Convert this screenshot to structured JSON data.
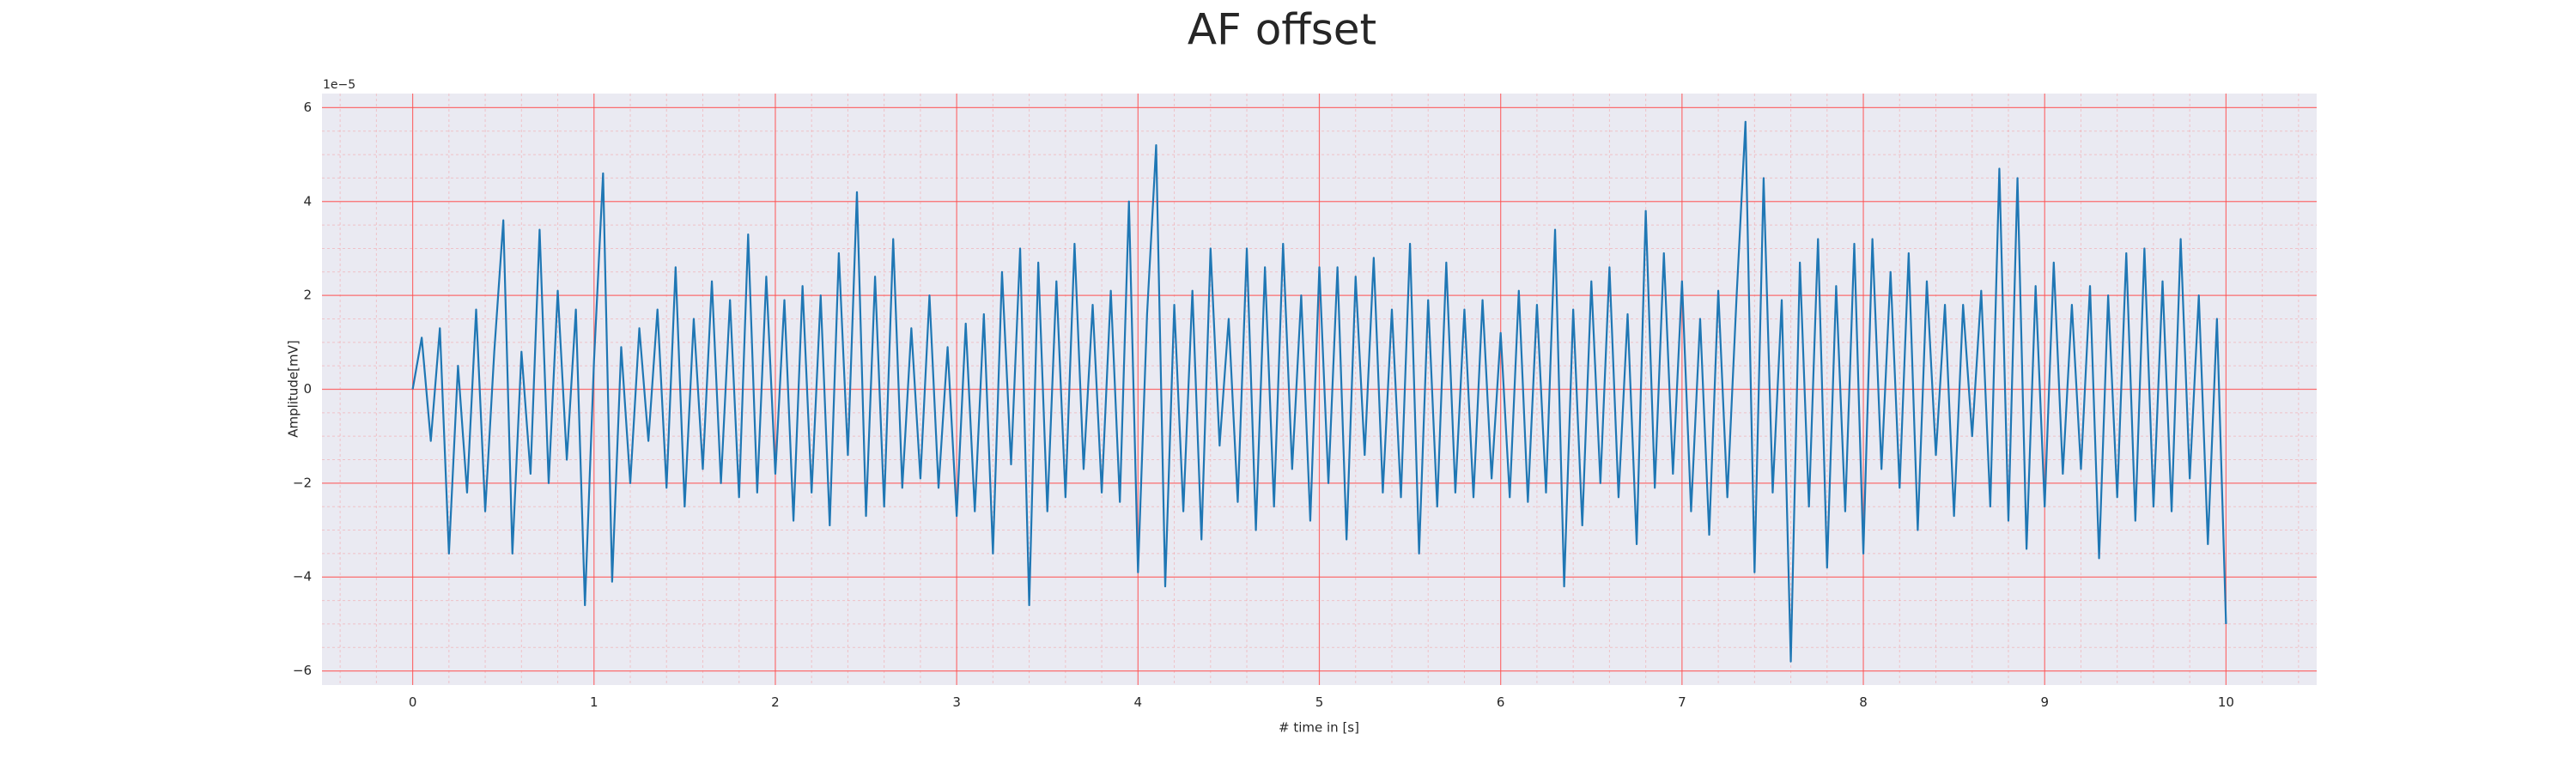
{
  "chart_data": {
    "type": "line",
    "title": "AF offset",
    "x_label": "# time in [s]",
    "y_label": "Amplitude[mV]",
    "y_offset_label": "1e−5",
    "xlim": [
      -0.5,
      10.5
    ],
    "ylim": [
      -6.3,
      6.3
    ],
    "xticks": [
      0,
      1,
      2,
      3,
      4,
      5,
      6,
      7,
      8,
      9,
      10
    ],
    "yticks": [
      {
        "value": -6,
        "label": "−6"
      },
      {
        "value": -4,
        "label": "−4"
      },
      {
        "value": -2,
        "label": "−2"
      },
      0,
      2,
      4,
      6
    ],
    "grid": true,
    "minor_grid": true,
    "background": "#eaeaf2",
    "grid_color": "#ff4d4d",
    "x": [
      0,
      0.05,
      0.1,
      0.15,
      0.2,
      0.25,
      0.3,
      0.35,
      0.4,
      0.45,
      0.5,
      0.55,
      0.6,
      0.65,
      0.7,
      0.75,
      0.8,
      0.85,
      0.9,
      0.95,
      1,
      1.05,
      1.1,
      1.15,
      1.2,
      1.25,
      1.3,
      1.35,
      1.4,
      1.45,
      1.5,
      1.55,
      1.6,
      1.65,
      1.7,
      1.75,
      1.8,
      1.85,
      1.9,
      1.95,
      2,
      2.05,
      2.1,
      2.15,
      2.2,
      2.25,
      2.3,
      2.35,
      2.4,
      2.45,
      2.5,
      2.55,
      2.6,
      2.65,
      2.7,
      2.75,
      2.8,
      2.85,
      2.9,
      2.95,
      3,
      3.05,
      3.1,
      3.15,
      3.2,
      3.25,
      3.3,
      3.35,
      3.4,
      3.45,
      3.5,
      3.55,
      3.6,
      3.65,
      3.7,
      3.75,
      3.8,
      3.85,
      3.9,
      3.95,
      4,
      4.05,
      4.1,
      4.15,
      4.2,
      4.25,
      4.3,
      4.35,
      4.4,
      4.45,
      4.5,
      4.55,
      4.6,
      4.65,
      4.7,
      4.75,
      4.8,
      4.85,
      4.9,
      4.95,
      5,
      5.05,
      5.1,
      5.15,
      5.2,
      5.25,
      5.3,
      5.35,
      5.4,
      5.45,
      5.5,
      5.55,
      5.6,
      5.65,
      5.7,
      5.75,
      5.8,
      5.85,
      5.9,
      5.95,
      6,
      6.05,
      6.1,
      6.15,
      6.2,
      6.25,
      6.3,
      6.35,
      6.4,
      6.45,
      6.5,
      6.55,
      6.6,
      6.65,
      6.7,
      6.75,
      6.8,
      6.85,
      6.9,
      6.95,
      7,
      7.05,
      7.1,
      7.15,
      7.2,
      7.25,
      7.3,
      7.35,
      7.4,
      7.45,
      7.5,
      7.55,
      7.6,
      7.65,
      7.7,
      7.75,
      7.8,
      7.85,
      7.9,
      7.95,
      8,
      8.05,
      8.1,
      8.15,
      8.2,
      8.25,
      8.3,
      8.35,
      8.4,
      8.45,
      8.5,
      8.55,
      8.6,
      8.65,
      8.7,
      8.75,
      8.8,
      8.85,
      8.9,
      8.95,
      9,
      9.05,
      9.1,
      9.15,
      9.2,
      9.25,
      9.3,
      9.35,
      9.4,
      9.45,
      9.5,
      9.55,
      9.6,
      9.65,
      9.7,
      9.75,
      9.8,
      9.85,
      9.9,
      9.95,
      10
    ],
    "series": [
      {
        "color": "#1f77b4",
        "values": [
          0,
          1.1,
          -1.1,
          1.3,
          -3.5,
          0.5,
          -2.2,
          1.7,
          -2.6,
          0.8,
          3.6,
          -3.5,
          0.8,
          -1.8,
          3.4,
          -2.0,
          2.1,
          -1.5,
          1.7,
          -4.6,
          0.6,
          4.6,
          -4.1,
          0.9,
          -2.0,
          1.3,
          -1.1,
          1.7,
          -2.1,
          2.6,
          -2.5,
          1.5,
          -1.7,
          2.3,
          -2.0,
          1.9,
          -2.3,
          3.3,
          -2.2,
          2.4,
          -1.8,
          1.9,
          -2.8,
          2.2,
          -2.2,
          2.0,
          -2.9,
          2.9,
          -1.4,
          4.2,
          -2.7,
          2.4,
          -2.5,
          3.2,
          -2.1,
          1.3,
          -1.9,
          2.0,
          -2.1,
          0.9,
          -2.7,
          1.4,
          -2.6,
          1.6,
          -3.5,
          2.5,
          -1.6,
          3.0,
          -4.6,
          2.7,
          -2.6,
          2.3,
          -2.3,
          3.1,
          -1.7,
          1.8,
          -2.2,
          2.1,
          -2.4,
          4.0,
          -3.9,
          1.6,
          5.2,
          -4.2,
          1.8,
          -2.6,
          2.1,
          -3.2,
          3.0,
          -1.2,
          1.5,
          -2.4,
          3.0,
          -3.0,
          2.6,
          -2.5,
          3.1,
          -1.7,
          2.0,
          -2.8,
          2.6,
          -2.0,
          2.6,
          -3.2,
          2.4,
          -1.4,
          2.8,
          -2.2,
          1.7,
          -2.3,
          3.1,
          -3.5,
          1.9,
          -2.5,
          2.7,
          -2.2,
          1.7,
          -2.3,
          1.9,
          -1.9,
          1.2,
          -2.3,
          2.1,
          -2.4,
          1.8,
          -2.2,
          3.4,
          -4.2,
          1.7,
          -2.9,
          2.3,
          -2.0,
          2.6,
          -2.3,
          1.6,
          -3.3,
          3.8,
          -2.1,
          2.9,
          -1.8,
          2.3,
          -2.6,
          1.5,
          -3.1,
          2.1,
          -2.3,
          1.9,
          5.7,
          -3.9,
          4.5,
          -2.2,
          1.9,
          -5.8,
          2.7,
          -2.5,
          3.2,
          -3.8,
          2.2,
          -2.6,
          3.1,
          -3.5,
          3.2,
          -1.7,
          2.5,
          -2.1,
          2.9,
          -3.0,
          2.3,
          -1.4,
          1.8,
          -2.7,
          1.8,
          -1.0,
          2.1,
          -2.5,
          4.7,
          -2.8,
          4.5,
          -3.4,
          2.2,
          -2.5,
          2.7,
          -1.8,
          1.8,
          -1.7,
          2.2,
          -3.6,
          2.0,
          -2.3,
          2.9,
          -2.8,
          3.0,
          -2.5,
          2.3,
          -2.6,
          3.2,
          -1.9,
          2.0,
          -3.3,
          1.5,
          -5.0
        ]
      }
    ]
  }
}
